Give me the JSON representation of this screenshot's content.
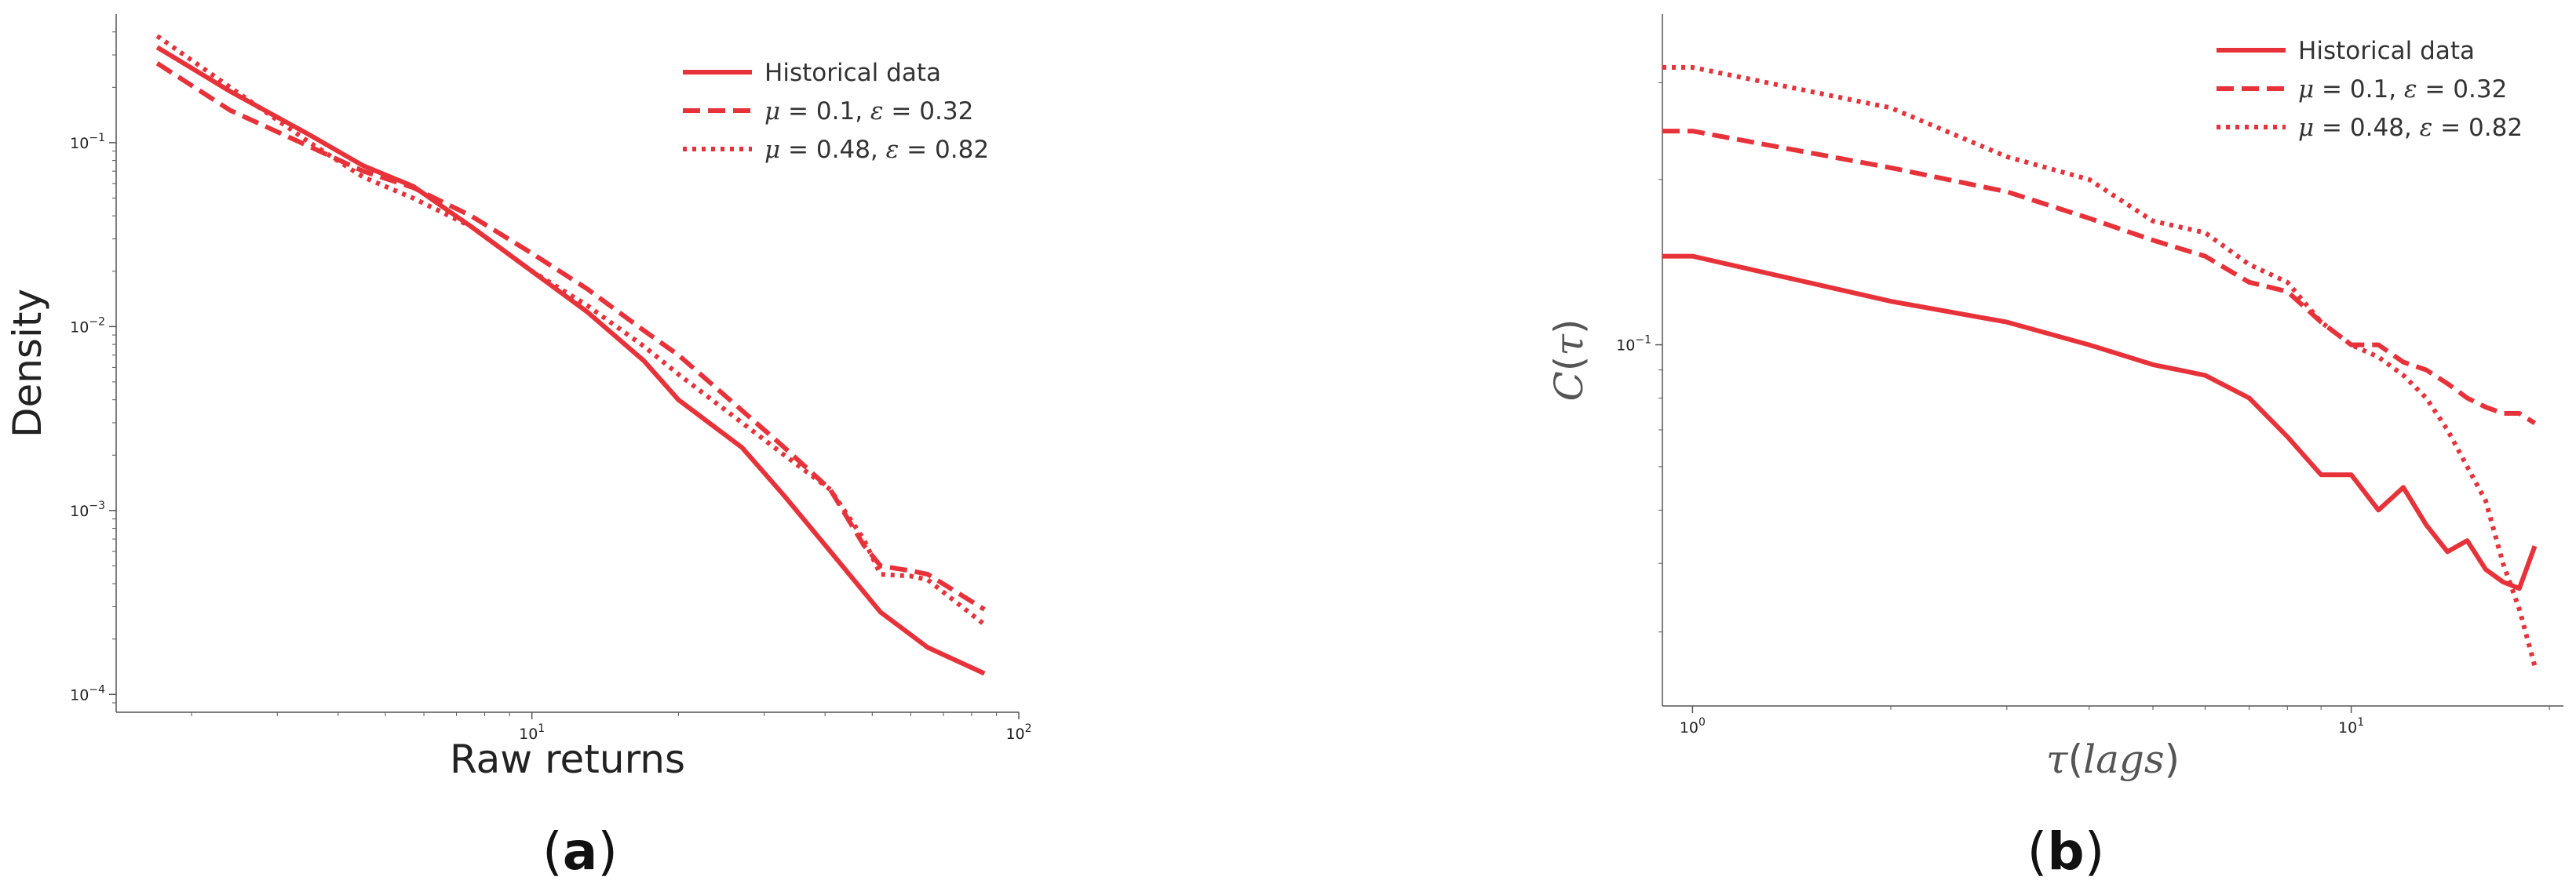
{
  "colors": {
    "series": "#e8323a",
    "axis": "#555555",
    "text": "#222222"
  },
  "chart_data": [
    {
      "panel_label": "a",
      "type": "line",
      "xscale": "log",
      "yscale": "log",
      "xlabel": "Raw returns",
      "ylabel": "Density",
      "xlim": [
        1.4,
        100
      ],
      "ylim": [
        8e-05,
        0.5
      ],
      "xticks": [
        {
          "value": 10,
          "base": "10",
          "exp": "1"
        },
        {
          "value": 100,
          "base": "10",
          "exp": "2"
        }
      ],
      "yticks": [
        {
          "value": 0.1,
          "base": "10",
          "exp": "−1"
        },
        {
          "value": 0.01,
          "base": "10",
          "exp": "−2"
        },
        {
          "value": 0.001,
          "base": "10",
          "exp": "−3"
        },
        {
          "value": 0.0001,
          "base": "10",
          "exp": "−4"
        }
      ],
      "grid": false,
      "legend_position": "top-right",
      "series": [
        {
          "name": "Historical data",
          "style": "solid",
          "x": [
            1.7,
            2.4,
            3.5,
            4.5,
            5.7,
            7.5,
            10,
            13,
            17,
            20,
            27,
            33,
            41,
            52,
            65,
            85
          ],
          "y": [
            0.33,
            0.19,
            0.11,
            0.075,
            0.058,
            0.035,
            0.02,
            0.012,
            0.0065,
            0.004,
            0.0022,
            0.0012,
            0.0006,
            0.00028,
            0.00018,
            0.00013
          ]
        },
        {
          "name": "μ = 0.1, ε = 0.32",
          "style": "dashed",
          "x": [
            1.7,
            2.4,
            3.5,
            4.5,
            5.7,
            7.5,
            10,
            13,
            17,
            20,
            27,
            33,
            41,
            48,
            52,
            60,
            65,
            85
          ],
          "y": [
            0.27,
            0.15,
            0.095,
            0.07,
            0.057,
            0.04,
            0.025,
            0.016,
            0.0095,
            0.007,
            0.0035,
            0.0022,
            0.0013,
            0.00065,
            0.0005,
            0.00047,
            0.00045,
            0.00029
          ]
        },
        {
          "name": "μ = 0.48, ε = 0.82",
          "style": "dotted",
          "x": [
            1.7,
            2.4,
            3.5,
            4.5,
            5.7,
            7.5,
            10,
            13,
            17,
            20,
            27,
            33,
            41,
            48,
            52,
            60,
            65,
            85
          ],
          "y": [
            0.38,
            0.2,
            0.1,
            0.065,
            0.05,
            0.035,
            0.02,
            0.013,
            0.0078,
            0.0055,
            0.003,
            0.002,
            0.0013,
            0.0007,
            0.00045,
            0.00044,
            0.00042,
            0.00024
          ]
        }
      ]
    },
    {
      "panel_label": "b",
      "type": "line",
      "xscale": "log",
      "yscale": "log",
      "xlabel": "τ(lags)",
      "ylabel": "C(τ)",
      "xlim": [
        0.9,
        21
      ],
      "ylim": [
        0.022,
        0.4
      ],
      "xticks": [
        {
          "value": 1,
          "base": "10",
          "exp": "0"
        },
        {
          "value": 10,
          "base": "10",
          "exp": "1"
        }
      ],
      "yticks": [
        {
          "value": 0.1,
          "base": "10",
          "exp": "−1"
        }
      ],
      "grid": false,
      "legend_position": "top-right",
      "series": [
        {
          "name": "Historical data",
          "style": "solid",
          "x": [
            0.9,
            1,
            2,
            3,
            4,
            5,
            6,
            7,
            8,
            9,
            10,
            11,
            12,
            13,
            14,
            15,
            16,
            17,
            18,
            19
          ],
          "y": [
            0.145,
            0.145,
            0.12,
            0.11,
            0.1,
            0.092,
            0.088,
            0.08,
            0.068,
            0.058,
            0.058,
            0.05,
            0.055,
            0.047,
            0.042,
            0.044,
            0.039,
            0.037,
            0.036,
            0.043
          ]
        },
        {
          "name": "μ = 0.1, ε = 0.32",
          "style": "dashed",
          "x": [
            0.9,
            1,
            2,
            3,
            4,
            5,
            6,
            7,
            8,
            9,
            10,
            11,
            12,
            13,
            14,
            15,
            16,
            17,
            18,
            19
          ],
          "y": [
            0.245,
            0.245,
            0.21,
            0.19,
            0.17,
            0.155,
            0.145,
            0.13,
            0.125,
            0.11,
            0.1,
            0.1,
            0.093,
            0.09,
            0.085,
            0.08,
            0.077,
            0.075,
            0.075,
            0.072
          ]
        },
        {
          "name": "μ = 0.48, ε = 0.82",
          "style": "dotted",
          "x": [
            0.9,
            1,
            2,
            3,
            4,
            5,
            6,
            7,
            8,
            9,
            10,
            11,
            12,
            13,
            14,
            15,
            16,
            17,
            18,
            19
          ],
          "y": [
            0.32,
            0.32,
            0.27,
            0.22,
            0.2,
            0.168,
            0.16,
            0.14,
            0.13,
            0.11,
            0.1,
            0.095,
            0.088,
            0.08,
            0.07,
            0.06,
            0.052,
            0.04,
            0.033,
            0.026
          ]
        }
      ]
    }
  ]
}
